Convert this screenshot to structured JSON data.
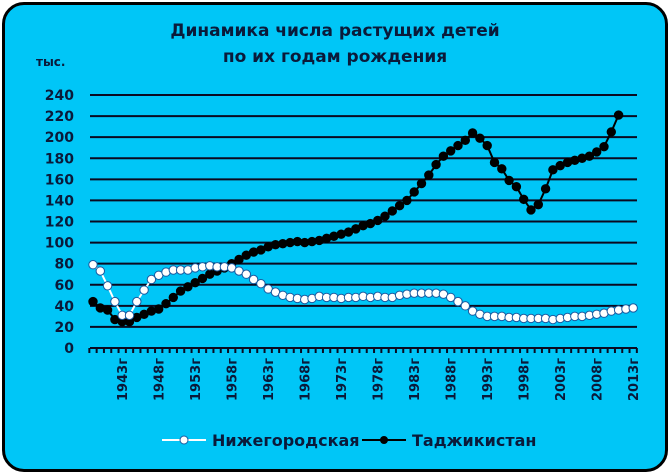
{
  "chart": {
    "title_line1": "Динамика числа растущих детей",
    "title_line2": "по их годам рождения",
    "unit_label": "тыс.",
    "background": "#00C6F7"
  },
  "legend": {
    "items": [
      {
        "label": "Нижегородская",
        "color": "#ffffff",
        "marker": "open-circle"
      },
      {
        "label": "Таджикистан",
        "color": "#000000",
        "marker": "filled-circle"
      }
    ]
  },
  "chart_data": {
    "type": "line",
    "title": "Динамика числа растущих детей по их годам рождения",
    "ylabel": "тыс.",
    "xlabel": "",
    "ylim": [
      0,
      240
    ],
    "yticks": [
      0,
      20,
      40,
      60,
      80,
      100,
      120,
      140,
      160,
      180,
      200,
      220,
      240
    ],
    "xticks": [
      "1943г",
      "1948г",
      "1953г",
      "1958г",
      "1963г",
      "1968г",
      "1973г",
      "1978г",
      "1983г",
      "1988г",
      "1993г",
      "1998г",
      "2003г",
      "2008г",
      "2013г"
    ],
    "x_start": 1939,
    "grid": true,
    "legend_position": "bottom",
    "series": [
      {
        "name": "Нижегородская",
        "start_year": 1939,
        "values": [
          79,
          73,
          59,
          44,
          31,
          31,
          44,
          55,
          65,
          69,
          72,
          74,
          74,
          74,
          76,
          77,
          78,
          77,
          77,
          76,
          73,
          70,
          65,
          61,
          56,
          53,
          50,
          48,
          47,
          46,
          47,
          49,
          48,
          48,
          47,
          48,
          48,
          49,
          48,
          49,
          48,
          48,
          50,
          51,
          52,
          52,
          52,
          52,
          51,
          48,
          44,
          40,
          35,
          32,
          30,
          30,
          30,
          29,
          29,
          28,
          28,
          28,
          28,
          27,
          28,
          29,
          30,
          30,
          31,
          32,
          33,
          35,
          36,
          37,
          38
        ]
      },
      {
        "name": "Таджикистан",
        "start_year": 1939,
        "values": [
          44,
          38,
          36,
          27,
          25,
          25,
          29,
          32,
          35,
          37,
          42,
          48,
          54,
          58,
          62,
          66,
          70,
          73,
          76,
          80,
          84,
          88,
          91,
          93,
          96,
          98,
          99,
          100,
          101,
          100,
          101,
          102,
          104,
          106,
          108,
          110,
          113,
          116,
          118,
          121,
          125,
          130,
          135,
          140,
          148,
          156,
          164,
          174,
          182,
          187,
          192,
          197,
          204,
          199,
          192,
          176,
          170,
          159,
          153,
          141,
          131,
          136,
          151,
          169,
          173,
          176,
          178,
          180,
          182,
          186,
          191,
          205,
          221
        ]
      }
    ]
  }
}
